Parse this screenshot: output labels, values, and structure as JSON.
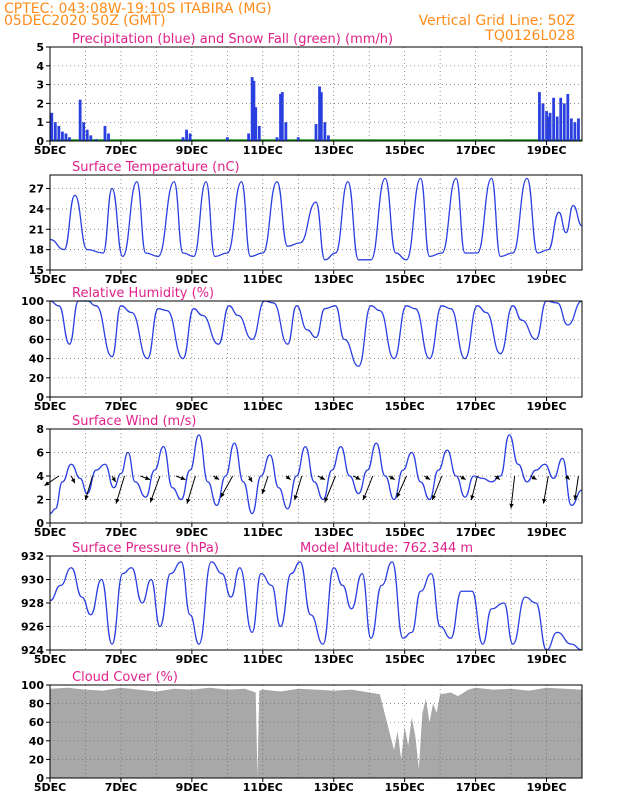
{
  "header": {
    "station": "CPTEC:   043:08W-19:10S   ITABIRA (MG)",
    "run": "05DEC2020 50Z (GMT)",
    "grid_note": "Vertical Grid Line: 50Z",
    "model": "TQ0126L028"
  },
  "colors": {
    "header": "#ff8c1a",
    "title": "#e0218a",
    "series": "#2a3fe0",
    "snow": "#1a9a1a",
    "cloud": "#a8a8a8",
    "arrow": "#000000"
  },
  "x_axis": {
    "labels": [
      "5DEC",
      "7DEC",
      "9DEC",
      "11DEC",
      "13DEC",
      "15DEC",
      "17DEC",
      "19DEC"
    ],
    "days": [
      0,
      2,
      4,
      6,
      8,
      10,
      12,
      14
    ],
    "range_days": [
      0,
      15
    ]
  },
  "chart_data": [
    {
      "id": "precip",
      "type": "bar",
      "title": "Precipitation (blue) and Snow Fall (green) (mm/h)",
      "ylim": [
        0,
        5
      ],
      "yticks": [
        0,
        1,
        2,
        3,
        4,
        5
      ],
      "series": [
        {
          "name": "Precipitation",
          "x": [
            0.05,
            0.15,
            0.25,
            0.35,
            0.45,
            0.55,
            0.85,
            0.95,
            1.05,
            1.15,
            1.3,
            1.55,
            1.65,
            3.75,
            3.85,
            3.95,
            5.0,
            5.6,
            5.7,
            5.75,
            5.8,
            5.9,
            6.4,
            6.5,
            6.55,
            6.65,
            7.0,
            7.5,
            7.6,
            7.65,
            7.75,
            7.85,
            13.8,
            13.9,
            14.0,
            14.05,
            14.1,
            14.2,
            14.3,
            14.4,
            14.5,
            14.6,
            14.7,
            14.8,
            14.9
          ],
          "values": [
            1.5,
            1.0,
            0.8,
            0.5,
            0.4,
            0.2,
            2.2,
            1.0,
            0.6,
            0.3,
            0.1,
            0.8,
            0.4,
            0.2,
            0.6,
            0.4,
            0.2,
            0.4,
            3.4,
            3.2,
            1.8,
            0.8,
            0.2,
            2.5,
            2.6,
            1.0,
            0.2,
            0.9,
            2.9,
            2.6,
            1.0,
            0.3,
            2.6,
            2.0,
            1.6,
            1.3,
            1.5,
            2.3,
            1.3,
            2.3,
            2.0,
            2.5,
            1.2,
            1.0,
            1.2
          ]
        },
        {
          "name": "Snow Fall",
          "x": [
            0,
            15
          ],
          "values": [
            0.05,
            0.05
          ]
        }
      ]
    },
    {
      "id": "temp",
      "type": "line",
      "title": "Surface Temperature (nC)",
      "ylim": [
        15,
        29
      ],
      "yticks": [
        15,
        18,
        21,
        24,
        27
      ],
      "series": [
        {
          "name": "Temperature",
          "x": [
            0,
            0.4,
            0.7,
            1.05,
            1.5,
            1.75,
            2.05,
            2.45,
            2.7,
            3.05,
            3.5,
            3.75,
            4.05,
            4.4,
            4.65,
            5.0,
            5.4,
            5.65,
            6.0,
            6.4,
            6.7,
            7.05,
            7.5,
            7.75,
            8.05,
            8.4,
            8.7,
            9.05,
            9.45,
            9.75,
            10.05,
            10.45,
            10.7,
            11.05,
            11.45,
            11.7,
            12.05,
            12.45,
            12.7,
            13.05,
            13.45,
            13.75,
            14.05,
            14.35,
            14.55,
            14.75,
            15.0
          ],
          "values": [
            19.5,
            18.0,
            26.0,
            18.0,
            17.5,
            27.0,
            17.0,
            28.0,
            17.5,
            17.0,
            28.0,
            17.5,
            17.0,
            28.0,
            17.0,
            17.5,
            28.0,
            17.0,
            17.5,
            28.0,
            18.5,
            19.0,
            25.0,
            16.5,
            17.5,
            28.0,
            16.5,
            16.5,
            28.5,
            17.5,
            16.5,
            28.5,
            17.0,
            17.5,
            28.5,
            17.5,
            17.5,
            28.5,
            17.0,
            17.5,
            28.5,
            17.5,
            18.0,
            23.5,
            20.5,
            24.5,
            21.5
          ]
        }
      ]
    },
    {
      "id": "rh",
      "type": "line",
      "title": "Relative Humidity (%)",
      "ylim": [
        0,
        100
      ],
      "yticks": [
        0,
        20,
        40,
        60,
        80,
        100
      ],
      "series": [
        {
          "name": "Relative Humidity",
          "x": [
            0,
            0.25,
            0.55,
            0.8,
            1.05,
            1.3,
            1.75,
            2.0,
            2.3,
            2.75,
            3.05,
            3.3,
            3.75,
            4.05,
            4.3,
            4.75,
            5.05,
            5.3,
            5.7,
            6.05,
            6.3,
            6.7,
            6.95,
            7.25,
            7.5,
            7.75,
            8.05,
            8.3,
            8.7,
            9.05,
            9.3,
            9.7,
            10.05,
            10.3,
            10.7,
            11.05,
            11.3,
            11.7,
            12.05,
            12.3,
            12.7,
            13.05,
            13.3,
            13.7,
            14.0,
            14.3,
            14.6,
            15.0
          ],
          "values": [
            100,
            95,
            55,
            100,
            100,
            95,
            42,
            95,
            88,
            40,
            92,
            90,
            40,
            92,
            85,
            55,
            95,
            85,
            60,
            100,
            98,
            55,
            95,
            70,
            62,
            92,
            95,
            60,
            32,
            95,
            90,
            40,
            95,
            92,
            40,
            95,
            92,
            40,
            95,
            88,
            45,
            95,
            80,
            60,
            100,
            98,
            75,
            100
          ]
        }
      ]
    },
    {
      "id": "wind",
      "type": "line",
      "title": "Surface Wind (m/s)",
      "ylim": [
        0,
        8
      ],
      "yticks": [
        0,
        2,
        4,
        6,
        8
      ],
      "series": [
        {
          "name": "Wind Speed",
          "x": [
            0,
            0.15,
            0.35,
            0.6,
            0.85,
            1.05,
            1.3,
            1.55,
            1.8,
            2.0,
            2.2,
            2.4,
            2.7,
            2.95,
            3.2,
            3.45,
            3.7,
            3.95,
            4.2,
            4.45,
            4.7,
            4.95,
            5.2,
            5.45,
            5.7,
            5.95,
            6.2,
            6.45,
            6.7,
            6.95,
            7.2,
            7.45,
            7.7,
            7.95,
            8.2,
            8.45,
            8.7,
            8.95,
            9.2,
            9.45,
            9.7,
            9.95,
            10.2,
            10.45,
            10.7,
            10.95,
            11.2,
            11.45,
            11.7,
            11.95,
            12.2,
            12.45,
            12.7,
            12.95,
            13.2,
            13.45,
            13.7,
            13.95,
            14.2,
            14.45,
            14.7,
            15.0
          ],
          "values": [
            0.8,
            1.2,
            3.5,
            5.0,
            3.8,
            2.5,
            4.5,
            5.0,
            3.0,
            4.2,
            6.0,
            3.5,
            2.2,
            4.5,
            6.5,
            3.0,
            2.0,
            4.5,
            7.5,
            3.5,
            1.5,
            4.0,
            6.8,
            3.5,
            0.8,
            4.0,
            5.8,
            3.0,
            1.2,
            4.0,
            6.5,
            3.5,
            2.0,
            4.5,
            6.5,
            4.0,
            2.5,
            4.5,
            6.8,
            4.0,
            2.0,
            4.5,
            6.0,
            3.5,
            2.0,
            4.5,
            6.2,
            4.0,
            2.2,
            4.0,
            3.8,
            3.5,
            4.0,
            7.5,
            5.0,
            3.5,
            4.5,
            5.0,
            3.8,
            5.5,
            1.5,
            2.8
          ]
        }
      ],
      "vectors": [
        {
          "x": 0.25,
          "u": -1.2,
          "v": -0.8
        },
        {
          "x": 0.6,
          "u": 0.3,
          "v": -0.6
        },
        {
          "x": 1.2,
          "u": -0.6,
          "v": -2.0
        },
        {
          "x": 1.75,
          "u": 0.3,
          "v": -0.5
        },
        {
          "x": 2.1,
          "u": -0.7,
          "v": -2.3
        },
        {
          "x": 2.55,
          "u": 0.8,
          "v": -0.3
        },
        {
          "x": 3.1,
          "u": -0.8,
          "v": -2.2
        },
        {
          "x": 3.55,
          "u": 0.8,
          "v": -0.3
        },
        {
          "x": 4.1,
          "u": -0.7,
          "v": -2.3
        },
        {
          "x": 4.6,
          "u": 0.5,
          "v": -0.3
        },
        {
          "x": 5.15,
          "u": -1.0,
          "v": -1.8
        },
        {
          "x": 5.6,
          "u": 0.3,
          "v": -0.5
        },
        {
          "x": 6.15,
          "u": -0.5,
          "v": -1.5
        },
        {
          "x": 6.65,
          "u": 0.4,
          "v": -0.3
        },
        {
          "x": 7.1,
          "u": -0.6,
          "v": -2.0
        },
        {
          "x": 7.55,
          "u": 0.6,
          "v": -0.3
        },
        {
          "x": 8.05,
          "u": -0.9,
          "v": -2.2
        },
        {
          "x": 8.55,
          "u": 0.6,
          "v": -0.3
        },
        {
          "x": 9.1,
          "u": -0.8,
          "v": -2.0
        },
        {
          "x": 9.55,
          "u": 0.5,
          "v": -0.3
        },
        {
          "x": 10.05,
          "u": -0.8,
          "v": -1.8
        },
        {
          "x": 10.55,
          "u": 0.5,
          "v": -0.3
        },
        {
          "x": 11.05,
          "u": -0.8,
          "v": -2.0
        },
        {
          "x": 11.55,
          "u": 0.5,
          "v": -0.3
        },
        {
          "x": 12.05,
          "u": -0.5,
          "v": -2.0
        },
        {
          "x": 12.55,
          "u": 0.4,
          "v": -0.3
        },
        {
          "x": 13.1,
          "u": -0.3,
          "v": -2.7
        },
        {
          "x": 13.55,
          "u": 0.5,
          "v": -0.3
        },
        {
          "x": 14.05,
          "u": -0.4,
          "v": -2.3
        },
        {
          "x": 14.55,
          "u": 0.3,
          "v": -0.3
        },
        {
          "x": 14.9,
          "u": -0.3,
          "v": -2.0
        }
      ]
    },
    {
      "id": "pressure",
      "type": "line",
      "title": "Surface Pressure (hPa)",
      "annotation": "Model Altitude: 762.344 m",
      "ylim": [
        924,
        932
      ],
      "yticks": [
        924,
        926,
        928,
        930,
        932
      ],
      "series": [
        {
          "name": "Pressure",
          "x": [
            0,
            0.3,
            0.6,
            0.9,
            1.15,
            1.45,
            1.75,
            2.05,
            2.3,
            2.6,
            2.85,
            3.1,
            3.4,
            3.7,
            3.95,
            4.2,
            4.55,
            4.85,
            5.1,
            5.35,
            5.7,
            5.95,
            6.25,
            6.5,
            6.8,
            7.05,
            7.35,
            7.7,
            8.0,
            8.25,
            8.5,
            8.8,
            9.05,
            9.35,
            9.65,
            9.95,
            10.2,
            10.45,
            10.75,
            11.0,
            11.3,
            11.6,
            11.9,
            12.2,
            12.45,
            12.8,
            13.05,
            13.4,
            13.7,
            14.0,
            14.3,
            14.7,
            15.0
          ],
          "values": [
            928.2,
            929.5,
            931.0,
            928.5,
            927.0,
            930.0,
            924.5,
            930.5,
            931.0,
            928.0,
            930.0,
            926.0,
            930.5,
            931.5,
            927.0,
            924.5,
            931.5,
            930.5,
            928.5,
            931.0,
            925.5,
            930.5,
            929.5,
            926.0,
            930.5,
            931.5,
            927.0,
            924.5,
            931.0,
            929.5,
            927.5,
            930.5,
            925.0,
            929.5,
            931.5,
            925.0,
            925.5,
            929.0,
            930.5,
            926.0,
            925.0,
            929.0,
            929.0,
            924.5,
            927.5,
            928.0,
            924.5,
            928.5,
            928.0,
            924.0,
            925.5,
            924.5,
            924.0
          ]
        }
      ]
    },
    {
      "id": "cloud",
      "type": "area",
      "title": "Cloud Cover (%)",
      "ylim": [
        0,
        100
      ],
      "yticks": [
        0,
        20,
        40,
        60,
        80,
        100
      ],
      "series": [
        {
          "name": "Cloud Cover",
          "x": [
            0,
            0.5,
            1.0,
            1.5,
            2.0,
            2.5,
            3.0,
            3.5,
            4.0,
            4.5,
            5.0,
            5.5,
            5.8,
            5.85,
            5.9,
            6.0,
            6.5,
            7.0,
            7.5,
            8.0,
            8.5,
            9.0,
            9.3,
            9.5,
            9.6,
            9.7,
            9.8,
            9.9,
            10.0,
            10.1,
            10.2,
            10.3,
            10.4,
            10.5,
            10.6,
            10.7,
            10.8,
            10.9,
            11.0,
            11.3,
            11.5,
            11.8,
            12.0,
            12.5,
            13.0,
            13.5,
            14.0,
            14.5,
            15.0
          ],
          "values": [
            96,
            97,
            95,
            94,
            97,
            95,
            93,
            96,
            95,
            97,
            95,
            96,
            92,
            0,
            94,
            95,
            93,
            96,
            95,
            94,
            95,
            92,
            90,
            60,
            45,
            30,
            50,
            20,
            55,
            35,
            65,
            45,
            10,
            70,
            85,
            60,
            80,
            70,
            90,
            92,
            88,
            95,
            97,
            95,
            96,
            94,
            97,
            96,
            95
          ]
        }
      ]
    }
  ]
}
